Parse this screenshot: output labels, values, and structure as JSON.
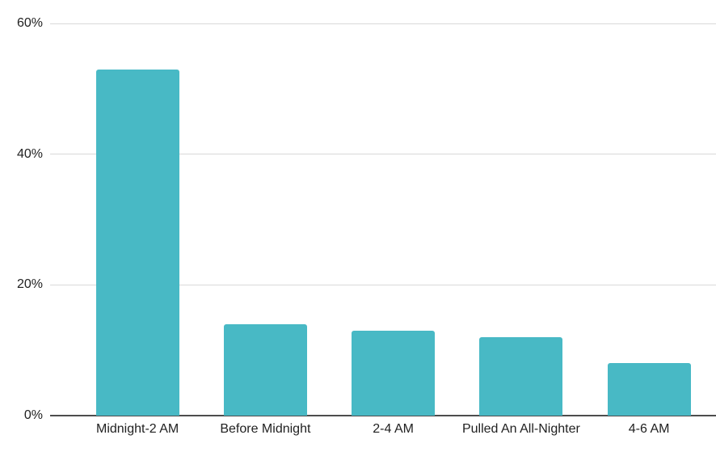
{
  "chart_data": {
    "type": "bar",
    "title": "",
    "xlabel": "",
    "ylabel": "",
    "categories": [
      "Midnight-2 AM",
      "Before Midnight",
      "2-4 AM",
      "Pulled An All-Nighter",
      "4-6 AM"
    ],
    "values": [
      53,
      14,
      13,
      12,
      8
    ],
    "value_unit": "%",
    "ylim": [
      0,
      60
    ],
    "y_ticks": [
      {
        "value": 0,
        "label": "0%"
      },
      {
        "value": 20,
        "label": "20%"
      },
      {
        "value": 40,
        "label": "40%"
      },
      {
        "value": 60,
        "label": "60%"
      }
    ],
    "grid": true,
    "legend": false,
    "colors": {
      "bar": "#48B9C5",
      "gridline": "#D9D9D9",
      "axis_line": "#4D4D4D",
      "tick_text": "#212121"
    }
  }
}
